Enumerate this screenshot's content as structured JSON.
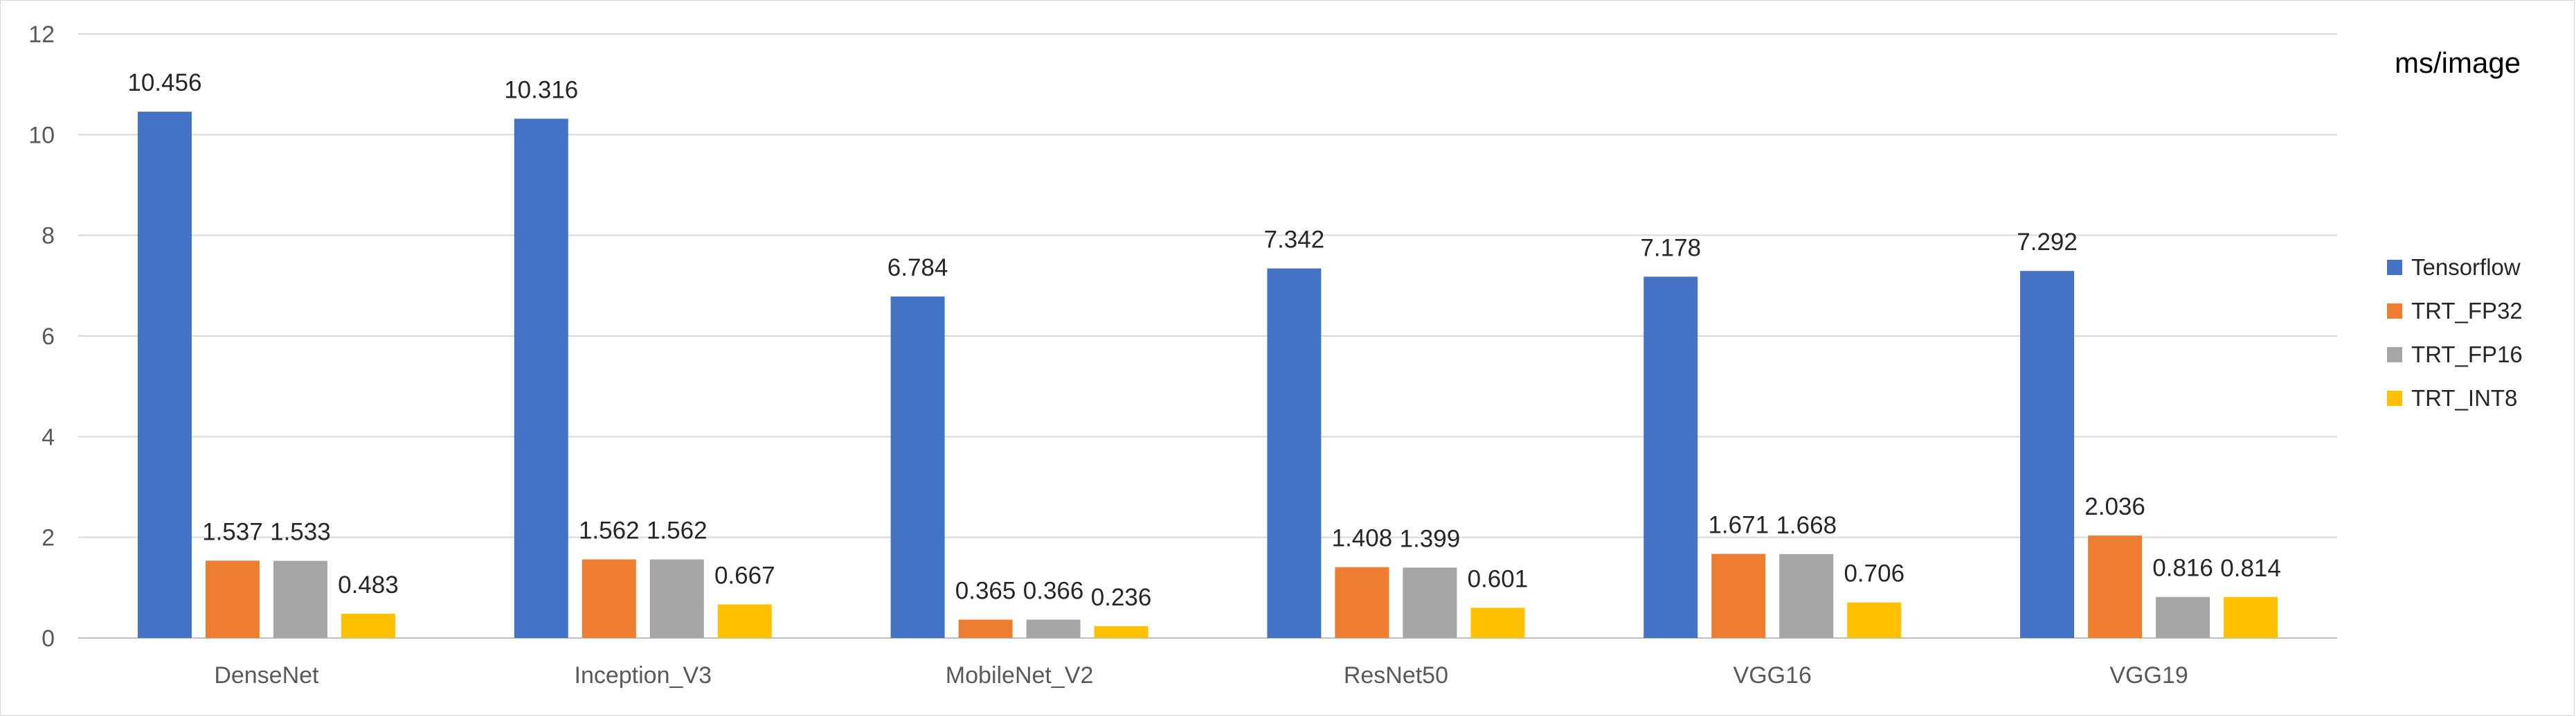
{
  "chart_data": {
    "type": "bar",
    "unit_label": "ms/image",
    "categories": [
      "DenseNet",
      "Inception_V3",
      "MobileNet_V2",
      "ResNet50",
      "VGG16",
      "VGG19"
    ],
    "series": [
      {
        "name": "Tensorflow",
        "color": "#4472C4",
        "values": [
          10.456,
          10.316,
          6.784,
          7.342,
          7.178,
          7.292
        ]
      },
      {
        "name": "TRT_FP32",
        "color": "#ED7D31",
        "values": [
          1.537,
          1.562,
          0.365,
          1.408,
          1.671,
          2.036
        ]
      },
      {
        "name": "TRT_FP16",
        "color": "#A5A5A5",
        "values": [
          1.533,
          1.562,
          0.366,
          1.399,
          1.668,
          0.816
        ]
      },
      {
        "name": "TRT_INT8",
        "color": "#FFC000",
        "values": [
          0.483,
          0.667,
          0.236,
          0.601,
          0.706,
          0.814
        ]
      }
    ],
    "data_labels": [
      [
        "10.456",
        "10.316",
        "6.784",
        "7.342",
        "7.178",
        "7.292"
      ],
      [
        "1.537",
        "1.562",
        "0.365",
        "1.408",
        "1.671",
        "2.036"
      ],
      [
        "1.533",
        "1.562",
        "0.366",
        "1.399",
        "1.668",
        "0.816"
      ],
      [
        "0.483",
        "0.667",
        "0.236",
        "0.601",
        "0.706",
        "0.814"
      ]
    ],
    "y_ticks": [
      "0",
      "2",
      "4",
      "6",
      "8",
      "10",
      "12"
    ],
    "ylim": [
      0,
      12
    ],
    "grid": true,
    "legend_position": "right"
  }
}
